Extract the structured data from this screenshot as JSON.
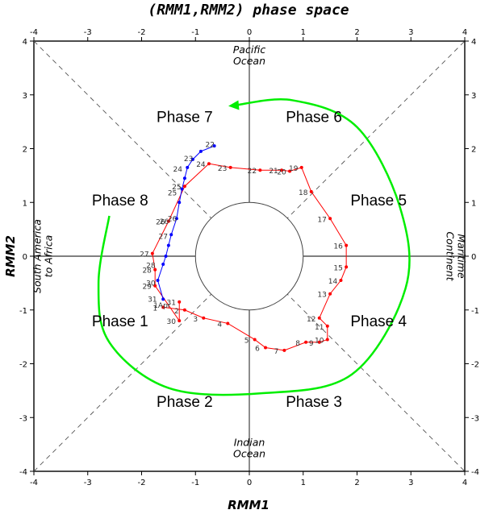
{
  "chart_data": {
    "type": "scatter",
    "title": "(RMM1,RMM2) phase space",
    "xlabel": "RMM1",
    "ylabel": "RMM2",
    "xlim": [
      -4,
      4
    ],
    "ylim": [
      -4,
      4
    ],
    "xticks": [
      "-4",
      "-3",
      "-2",
      "-1",
      "0",
      "1",
      "2",
      "3",
      "4"
    ],
    "yticks": [
      "-4",
      "-3",
      "-2",
      "-1",
      "0",
      "1",
      "2",
      "3",
      "4"
    ],
    "unit_circle_radius": 1,
    "phase_labels": [
      {
        "text": "Phase 1",
        "x": -2.4,
        "y": -1.2
      },
      {
        "text": "Phase 2",
        "x": -1.2,
        "y": -2.7
      },
      {
        "text": "Phase 3",
        "x": 1.2,
        "y": -2.7
      },
      {
        "text": "Phase 4",
        "x": 2.4,
        "y": -1.2
      },
      {
        "text": "Phase 5",
        "x": 2.4,
        "y": 1.05
      },
      {
        "text": "Phase 6",
        "x": 1.2,
        "y": 2.6
      },
      {
        "text": "Phase 7",
        "x": -1.2,
        "y": 2.6
      },
      {
        "text": "Phase 8",
        "x": -2.4,
        "y": 1.05
      }
    ],
    "region_labels": [
      {
        "lines": [
          "Pacific",
          "Ocean"
        ],
        "x": 0,
        "y": 3.7,
        "rotate": 0
      },
      {
        "lines": [
          "Indian",
          "Ocean"
        ],
        "x": 0,
        "y": -3.6,
        "rotate": 0
      },
      {
        "lines": [
          "South America",
          "to Africa"
        ],
        "x": -3.8,
        "y": 0,
        "rotate": -90
      },
      {
        "lines": [
          "Maritime",
          "Continent"
        ],
        "x": 3.8,
        "y": 0,
        "rotate": 90
      }
    ],
    "series": [
      {
        "color": "#ff0000",
        "points": [
          {
            "label": "1",
            "x": -1.6,
            "y": -0.95
          },
          {
            "label": "2",
            "x": -1.2,
            "y": -1.0
          },
          {
            "label": "3",
            "x": -0.85,
            "y": -1.15
          },
          {
            "label": "4",
            "x": -0.4,
            "y": -1.25
          },
          {
            "label": "5",
            "x": 0.1,
            "y": -1.55
          },
          {
            "label": "6",
            "x": 0.3,
            "y": -1.7
          },
          {
            "label": "7",
            "x": 0.65,
            "y": -1.75
          },
          {
            "label": "8",
            "x": 1.05,
            "y": -1.6
          },
          {
            "label": "9",
            "x": 1.3,
            "y": -1.6
          },
          {
            "label": "10",
            "x": 1.45,
            "y": -1.55
          },
          {
            "label": "11",
            "x": 1.45,
            "y": -1.3
          },
          {
            "label": "12",
            "x": 1.3,
            "y": -1.15
          },
          {
            "label": "13",
            "x": 1.5,
            "y": -0.7
          },
          {
            "label": "14",
            "x": 1.7,
            "y": -0.45
          },
          {
            "label": "15",
            "x": 1.8,
            "y": -0.2
          },
          {
            "label": "16",
            "x": 1.8,
            "y": 0.2
          },
          {
            "label": "17",
            "x": 1.5,
            "y": 0.7
          },
          {
            "label": "18",
            "x": 1.15,
            "y": 1.2
          },
          {
            "label": "19",
            "x": 0.97,
            "y": 1.65
          },
          {
            "label": "20",
            "x": 0.75,
            "y": 1.58
          },
          {
            "label": "21",
            "x": 0.6,
            "y": 1.6
          },
          {
            "label": "22",
            "x": 0.2,
            "y": 1.6
          },
          {
            "label": "23",
            "x": -0.35,
            "y": 1.65
          },
          {
            "label": "24",
            "x": -0.75,
            "y": 1.72
          },
          {
            "label": "25",
            "x": -1.2,
            "y": 1.3
          },
          {
            "label": "26",
            "x": -1.5,
            "y": 0.65
          },
          {
            "label": "27",
            "x": -1.8,
            "y": 0.05
          },
          {
            "label": "28",
            "x": -1.75,
            "y": -0.25
          },
          {
            "label": "29",
            "x": -1.75,
            "y": -0.55
          },
          {
            "label": "30",
            "x": -1.3,
            "y": -1.2
          },
          {
            "label": "31",
            "x": -1.3,
            "y": -0.85
          }
        ]
      },
      {
        "color": "#0000ff",
        "points": [
          {
            "label": "1",
            "x": -1.6,
            "y": -0.8
          },
          {
            "label": "2",
            "x": -1.7,
            "y": -0.45
          },
          {
            "label": "3",
            "x": -1.6,
            "y": -0.15
          },
          {
            "label": "4",
            "x": -1.55,
            "y": 0.0
          },
          {
            "label": "5",
            "x": -1.5,
            "y": 0.2
          },
          {
            "label": "6",
            "x": -1.45,
            "y": 0.4
          },
          {
            "label": "7",
            "x": -1.35,
            "y": 0.7
          },
          {
            "label": "8",
            "x": -1.3,
            "y": 1.0
          },
          {
            "label": "9",
            "x": -1.25,
            "y": 1.25
          },
          {
            "label": "10",
            "x": -1.2,
            "y": 1.45
          },
          {
            "label": "11",
            "x": -1.15,
            "y": 1.65
          },
          {
            "label": "12",
            "x": -1.05,
            "y": 1.8
          },
          {
            "label": "13",
            "x": -0.9,
            "y": 1.95
          },
          {
            "label": "14",
            "x": -0.65,
            "y": 2.05
          }
        ]
      }
    ],
    "point_annotations": [
      {
        "text": "24",
        "x": -1.33,
        "y": 1.57
      },
      {
        "text": "23",
        "x": -1.13,
        "y": 1.77
      },
      {
        "text": "22",
        "x": -0.73,
        "y": 2.03
      },
      {
        "text": "25",
        "x": -1.43,
        "y": 1.13
      },
      {
        "text": "26",
        "x": -1.58,
        "y": 0.6
      },
      {
        "text": "27",
        "x": -1.6,
        "y": 0.32
      },
      {
        "text": "28",
        "x": -1.83,
        "y": -0.22
      },
      {
        "text": "30",
        "x": -1.83,
        "y": -0.55
      },
      {
        "text": "31",
        "x": -1.8,
        "y": -0.85
      },
      {
        "text": "1Apr",
        "x": -1.62,
        "y": -0.96
      },
      {
        "text": "26",
        "x": -1.43,
        "y": 0.65
      }
    ],
    "green_arrow": [
      {
        "x": -2.6,
        "y": 0.75
      },
      {
        "x": -2.8,
        "y": -0.5
      },
      {
        "x": -2.6,
        "y": -1.6
      },
      {
        "x": -1.5,
        "y": -2.45
      },
      {
        "x": 0.2,
        "y": -2.55
      },
      {
        "x": 1.9,
        "y": -2.2
      },
      {
        "x": 2.9,
        "y": -0.6
      },
      {
        "x": 2.8,
        "y": 0.9
      },
      {
        "x": 2.0,
        "y": 2.4
      },
      {
        "x": 0.8,
        "y": 2.9
      },
      {
        "x": -0.3,
        "y": 2.8
      }
    ],
    "colors": {
      "red_line": "#ff0000",
      "blue_line": "#0000ff",
      "arrow": "#00ee00",
      "axes": "#000000",
      "dashed": "#555555"
    },
    "grid": false
  }
}
